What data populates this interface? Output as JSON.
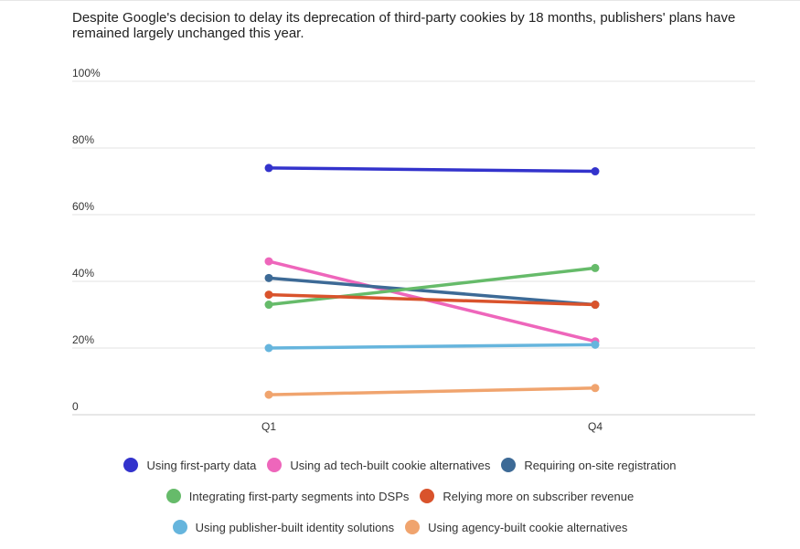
{
  "chart_data": {
    "type": "line",
    "title": "Despite Google's decision to delay its deprecation of third-party cookies by 18 months, publishers' plans have remained largely unchanged this year.",
    "categories": [
      "Q1",
      "Q4"
    ],
    "ylim": [
      0,
      100
    ],
    "yticks": [
      0,
      20,
      40,
      60,
      80,
      100
    ],
    "ytick_labels": [
      "0",
      "20%",
      "40%",
      "60%",
      "80%",
      "100%"
    ],
    "grid": true,
    "legend_position": "bottom",
    "series": [
      {
        "name": "Using first-party data",
        "color": "#3333cc",
        "values": [
          74,
          73
        ]
      },
      {
        "name": "Using ad tech-built cookie alternatives",
        "color": "#ee66bb",
        "values": [
          46,
          22
        ]
      },
      {
        "name": "Requiring on-site registration",
        "color": "#3d6a96",
        "values": [
          41,
          33
        ]
      },
      {
        "name": "Integrating first-party segments into DSPs",
        "color": "#66bb6a",
        "values": [
          33,
          44
        ]
      },
      {
        "name": "Relying more on subscriber revenue",
        "color": "#d9532c",
        "values": [
          36,
          33
        ]
      },
      {
        "name": "Using publisher-built identity solutions",
        "color": "#66b5dd",
        "values": [
          20,
          21
        ]
      },
      {
        "name": "Using agency-built cookie alternatives",
        "color": "#f0a46e",
        "values": [
          6,
          8
        ]
      }
    ]
  }
}
